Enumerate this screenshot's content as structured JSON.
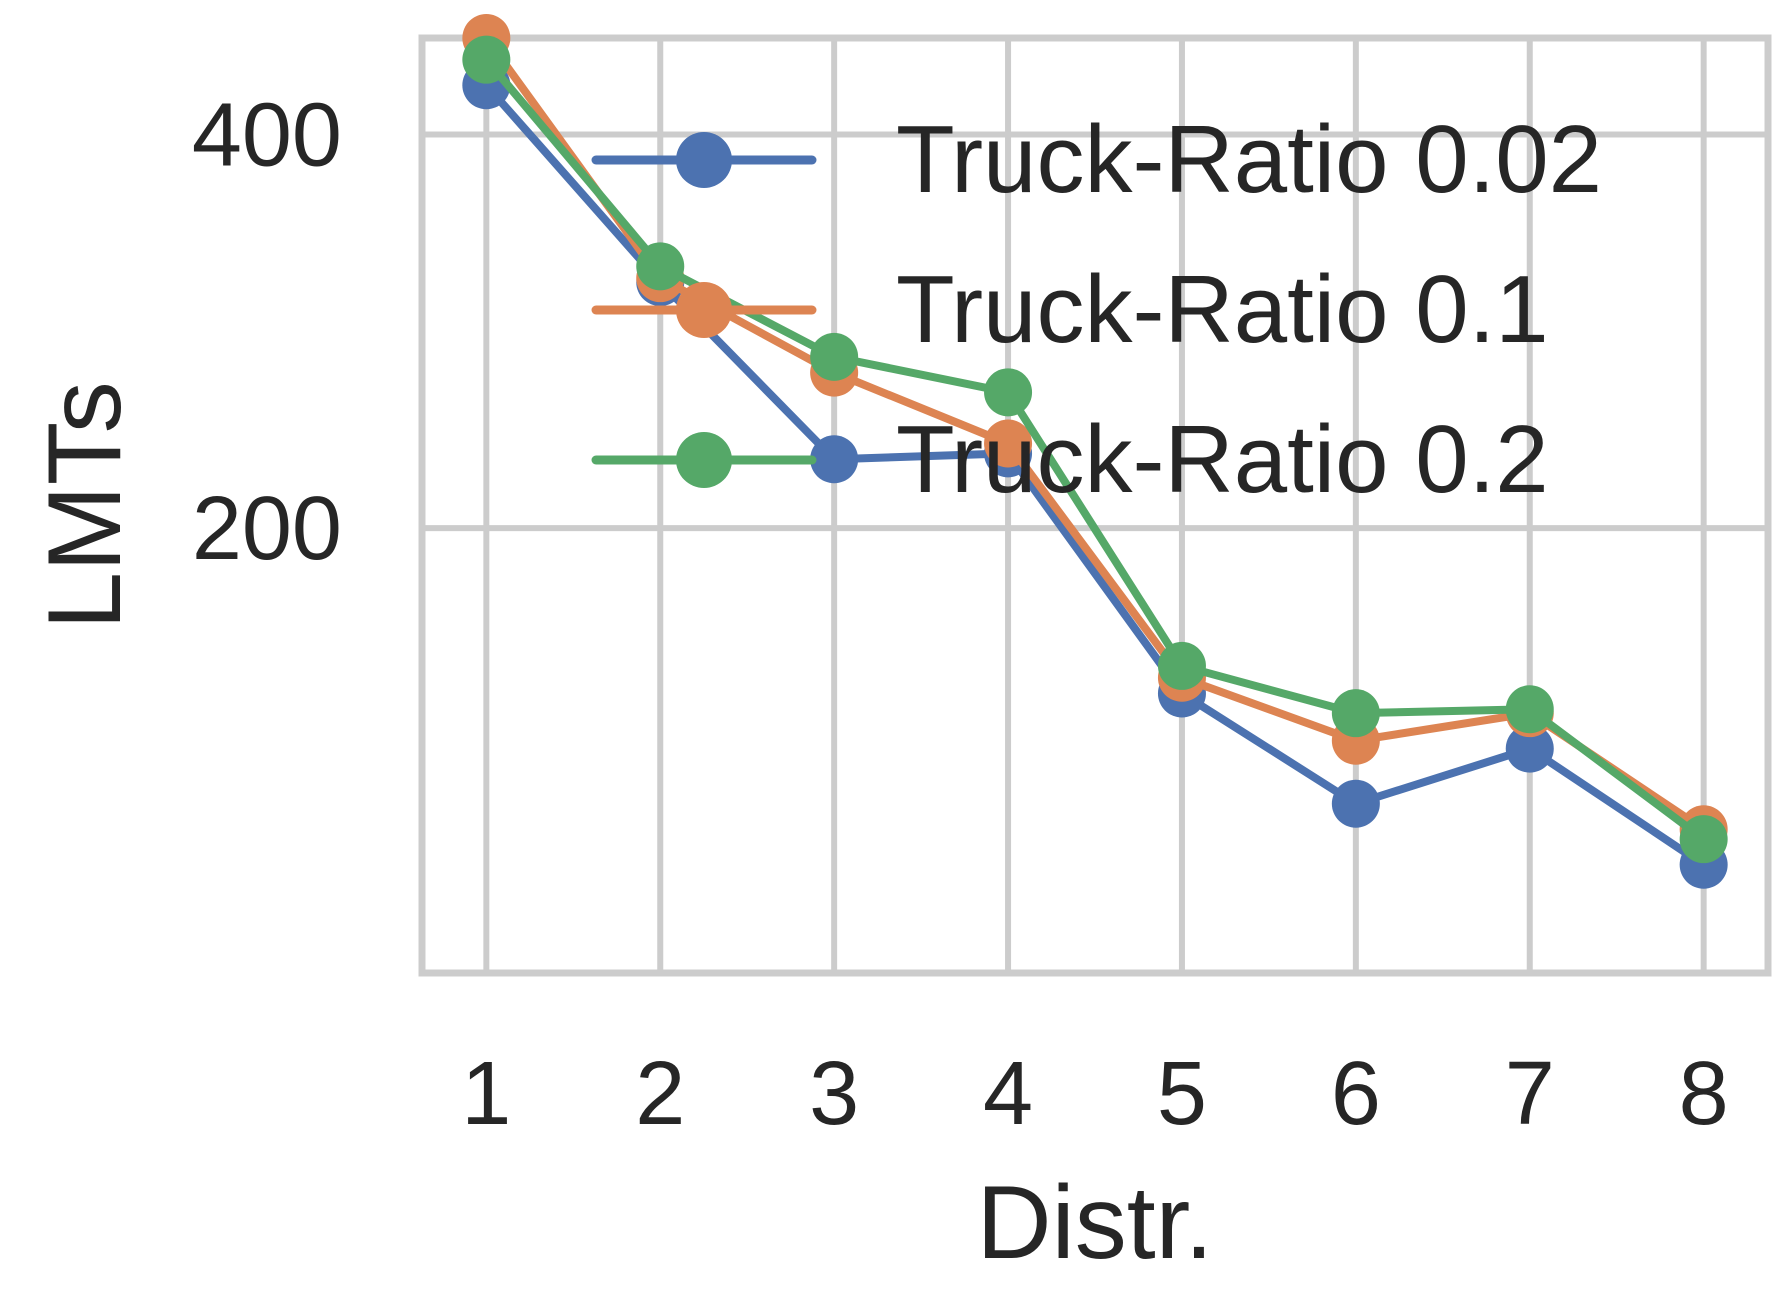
{
  "chart_data": {
    "type": "line",
    "x": [
      1,
      2,
      3,
      4,
      5,
      6,
      7,
      8
    ],
    "xlabel": "Distr.",
    "ylabel": "LMTs",
    "ylim": [
      -26,
      449
    ],
    "yticks": [
      200,
      400
    ],
    "grid": true,
    "legend_position": "upper right",
    "series": [
      {
        "name": "Truck-Ratio 0.02",
        "color": "#4c72b0",
        "values": [
          425,
          325,
          235,
          238,
          116,
          60,
          88,
          29
        ]
      },
      {
        "name": "Truck-Ratio 0.1",
        "color": "#dd8452",
        "values": [
          449,
          327,
          279,
          243,
          124,
          92,
          106,
          47
        ]
      },
      {
        "name": "Truck-Ratio 0.2",
        "color": "#55a868",
        "values": [
          438,
          333,
          287,
          269,
          130,
          106,
          108,
          42
        ]
      }
    ]
  }
}
